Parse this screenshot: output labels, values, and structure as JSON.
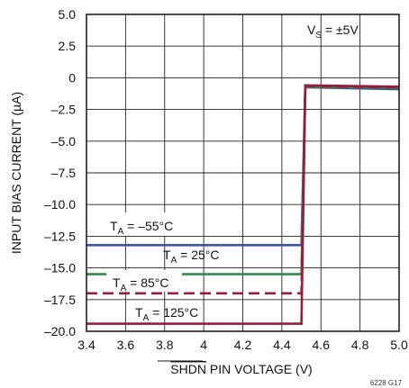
{
  "chart_data": {
    "type": "line",
    "title": "",
    "xlabel_overbar": "SHDN",
    "xlabel_rest": " PIN VOLTAGE  (V)",
    "ylabel": "INPUT BIAS CURRENT (µA)",
    "xlim": [
      3.4,
      5.0
    ],
    "ylim": [
      -20.0,
      5.0
    ],
    "x_ticks": [
      3.4,
      3.6,
      3.8,
      4.0,
      4.2,
      4.4,
      4.6,
      4.8,
      5.0
    ],
    "x_tick_labels": [
      "3.4",
      "3.6",
      "3.8",
      "4",
      "4.2",
      "4.4",
      "4.6",
      "4.8",
      "5.0"
    ],
    "y_ticks": [
      5.0,
      2.5,
      0,
      -2.5,
      -5.0,
      -7.5,
      -10.0,
      -12.5,
      -15.0,
      -17.5,
      -20.0
    ],
    "y_tick_labels": [
      "5.0",
      "2.5",
      "0",
      "–2.5",
      "–5.0",
      "–7.5",
      "–10.0",
      "–12.5",
      "–15.0",
      "–17.5",
      "–20.0"
    ],
    "grid": true,
    "annotation": {
      "main": "V",
      "sub": "S",
      "rest": " = ±5V"
    },
    "figure_id": "6228 G17",
    "series": [
      {
        "label_main": "T",
        "label_sub": "A",
        "label_rest": " = –55°C",
        "color": "#3a55a4",
        "dash": "solid",
        "x": [
          3.4,
          4.5,
          4.52,
          5.0
        ],
        "y": [
          -13.2,
          -13.2,
          -0.75,
          -0.9
        ]
      },
      {
        "label_main": "T",
        "label_sub": "A",
        "label_rest": " = 25°C",
        "color": "#2e8b4a",
        "dash": "solid",
        "x": [
          3.4,
          4.5,
          4.52,
          5.0
        ],
        "y": [
          -15.5,
          -15.5,
          -0.7,
          -0.8
        ]
      },
      {
        "label_main": "T",
        "label_sub": "A",
        "label_rest": " = 85°C",
        "color": "#9b1b3b",
        "dash": "dashed",
        "x": [
          3.4,
          4.5,
          4.52,
          5.0
        ],
        "y": [
          -17.0,
          -17.0,
          -0.65,
          -0.75
        ]
      },
      {
        "label_main": "T",
        "label_sub": "A",
        "label_rest": " = 125°C",
        "color": "#9b1b3b",
        "dash": "solid",
        "x": [
          3.4,
          4.5,
          4.52,
          5.0
        ],
        "y": [
          -19.4,
          -19.4,
          -0.6,
          -0.7
        ]
      }
    ]
  }
}
